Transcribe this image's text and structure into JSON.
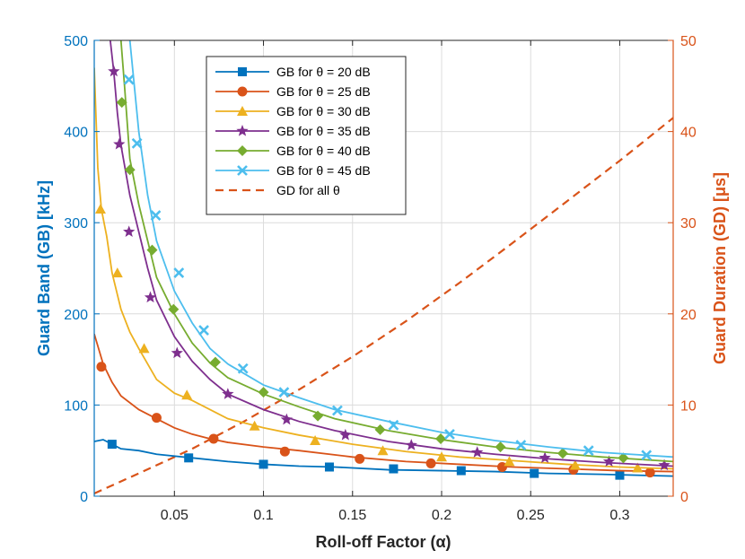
{
  "chart_data": {
    "type": "line",
    "xlabel": "Roll-off Factor (α)",
    "ylabel_left": "Guard Band (GB) [kHz]",
    "ylabel_right": "Guard Duration (GD) [μs]",
    "xlim": [
      0.005,
      0.33
    ],
    "ylim_left": [
      0,
      500
    ],
    "ylim_right": [
      0,
      50
    ],
    "xticks": [
      0.05,
      0.1,
      0.15,
      0.2,
      0.25,
      0.3
    ],
    "xtick_labels": [
      "0.05",
      "0.1",
      "0.15",
      "0.2",
      "0.25",
      "0.3"
    ],
    "yticks_left": [
      0,
      100,
      200,
      300,
      400,
      500
    ],
    "ytick_labels_left": [
      "0",
      "100",
      "200",
      "300",
      "400",
      "500"
    ],
    "yticks_right": [
      0,
      10,
      20,
      30,
      40,
      50
    ],
    "ytick_labels_right": [
      "0",
      "10",
      "20",
      "30",
      "40",
      "50"
    ],
    "left_axis_color": "#0072BD",
    "right_axis_color": "#D95319",
    "grid": true,
    "legend_position": "top-left",
    "series": [
      {
        "name": "GB for θ = 20 dB",
        "color": "#0072BD",
        "marker": "square",
        "axis": "left",
        "x": [
          0.005,
          0.01,
          0.015,
          0.02,
          0.03,
          0.04,
          0.06,
          0.08,
          0.1,
          0.12,
          0.14,
          0.17,
          0.2,
          0.23,
          0.26,
          0.29,
          0.33
        ],
        "y": [
          60,
          62,
          57,
          52,
          50,
          46,
          42,
          38,
          35,
          33,
          32,
          29,
          28,
          27,
          25,
          24,
          22
        ],
        "marker_x": [
          0.015,
          0.058,
          0.1,
          0.137,
          0.173,
          0.211,
          0.252,
          0.3
        ],
        "marker_y": [
          57,
          42,
          35,
          32,
          30,
          28,
          25,
          23
        ]
      },
      {
        "name": "GB for θ = 25 dB",
        "color": "#D95319",
        "marker": "circle",
        "axis": "left",
        "x": [
          0.005,
          0.01,
          0.015,
          0.02,
          0.03,
          0.04,
          0.05,
          0.06,
          0.07,
          0.08,
          0.1,
          0.12,
          0.15,
          0.18,
          0.21,
          0.24,
          0.27,
          0.3,
          0.33
        ],
        "y": [
          178,
          145,
          125,
          110,
          95,
          85,
          75,
          68,
          63,
          59,
          54,
          50,
          43,
          38,
          35,
          32,
          30,
          28,
          27
        ],
        "marker_x": [
          0.009,
          0.04,
          0.072,
          0.112,
          0.154,
          0.194,
          0.234,
          0.274,
          0.317
        ],
        "marker_y": [
          142,
          86,
          63,
          49,
          41,
          36,
          32,
          29,
          26
        ]
      },
      {
        "name": "GB for θ = 30 dB",
        "color": "#EDB120",
        "marker": "triangle",
        "axis": "left",
        "x": [
          0.005,
          0.007,
          0.009,
          0.012,
          0.015,
          0.02,
          0.025,
          0.03,
          0.04,
          0.05,
          0.06,
          0.08,
          0.1,
          0.12,
          0.15,
          0.18,
          0.21,
          0.24,
          0.27,
          0.3,
          0.33
        ],
        "y": [
          470,
          360,
          315,
          285,
          245,
          205,
          180,
          162,
          128,
          113,
          105,
          85,
          75,
          67,
          57,
          49,
          43,
          39,
          35,
          32,
          30
        ],
        "marker_x": [
          0.0085,
          0.018,
          0.033,
          0.057,
          0.095,
          0.129,
          0.167,
          0.2,
          0.238,
          0.275,
          0.31
        ],
        "marker_y": [
          315,
          245,
          162,
          111,
          77,
          61,
          50,
          43,
          38,
          34,
          31
        ]
      },
      {
        "name": "GB for θ = 35 dB",
        "color": "#7E2F8E",
        "marker": "star",
        "axis": "left",
        "x": [
          0.014,
          0.016,
          0.018,
          0.02,
          0.025,
          0.03,
          0.035,
          0.04,
          0.05,
          0.06,
          0.07,
          0.08,
          0.1,
          0.12,
          0.14,
          0.17,
          0.2,
          0.23,
          0.26,
          0.29,
          0.33
        ],
        "y": [
          500,
          465,
          420,
          385,
          330,
          290,
          250,
          215,
          175,
          148,
          128,
          112,
          95,
          82,
          72,
          60,
          52,
          46,
          41,
          37,
          33
        ],
        "marker_x": [
          0.016,
          0.019,
          0.0245,
          0.0365,
          0.0515,
          0.08,
          0.113,
          0.146,
          0.183,
          0.22,
          0.258,
          0.294,
          0.325
        ],
        "marker_y": [
          466,
          386,
          290,
          218,
          157,
          112,
          84,
          67,
          56,
          48,
          42,
          38,
          34
        ]
      },
      {
        "name": "GB for θ = 40 dB",
        "color": "#77AC30",
        "marker": "diamond",
        "axis": "left",
        "x": [
          0.02,
          0.022,
          0.025,
          0.03,
          0.035,
          0.04,
          0.05,
          0.06,
          0.07,
          0.08,
          0.1,
          0.12,
          0.14,
          0.17,
          0.2,
          0.23,
          0.26,
          0.29,
          0.33
        ],
        "y": [
          500,
          450,
          370,
          320,
          280,
          240,
          200,
          168,
          146,
          130,
          112,
          98,
          85,
          72,
          62,
          54,
          48,
          43,
          38
        ],
        "marker_x": [
          0.0205,
          0.025,
          0.0375,
          0.0495,
          0.073,
          0.1,
          0.1305,
          0.1655,
          0.1995,
          0.233,
          0.268,
          0.302
        ],
        "marker_y": [
          432,
          358,
          270,
          205,
          147,
          114,
          88,
          73,
          63,
          54,
          47,
          42
        ]
      },
      {
        "name": "GB for θ = 45 dB",
        "color": "#4DBEEE",
        "marker": "x",
        "axis": "left",
        "x": [
          0.025,
          0.027,
          0.03,
          0.035,
          0.04,
          0.05,
          0.06,
          0.07,
          0.08,
          0.1,
          0.12,
          0.14,
          0.17,
          0.2,
          0.23,
          0.26,
          0.29,
          0.33
        ],
        "y": [
          500,
          460,
          400,
          330,
          280,
          225,
          190,
          162,
          145,
          122,
          108,
          95,
          82,
          70,
          61,
          54,
          48,
          43
        ],
        "marker_x": [
          0.0245,
          0.029,
          0.0395,
          0.0525,
          0.0665,
          0.0885,
          0.1115,
          0.1415,
          0.173,
          0.2045,
          0.2445,
          0.2825,
          0.315
        ],
        "marker_y": [
          457,
          387,
          308,
          245,
          182,
          140,
          114,
          94,
          78,
          68,
          56,
          50,
          45
        ]
      },
      {
        "name": "GD for all θ",
        "color": "#D95319",
        "marker": "none",
        "line_style": "dashed",
        "axis": "right",
        "x": [
          0.005,
          0.03,
          0.06,
          0.09,
          0.12,
          0.15,
          0.18,
          0.21,
          0.24,
          0.27,
          0.3,
          0.33
        ],
        "y": [
          0.3,
          2.5,
          5.2,
          8.3,
          11.7,
          15.3,
          19.2,
          23.4,
          27.8,
          32.3,
          36.8,
          41.5
        ]
      }
    ]
  }
}
